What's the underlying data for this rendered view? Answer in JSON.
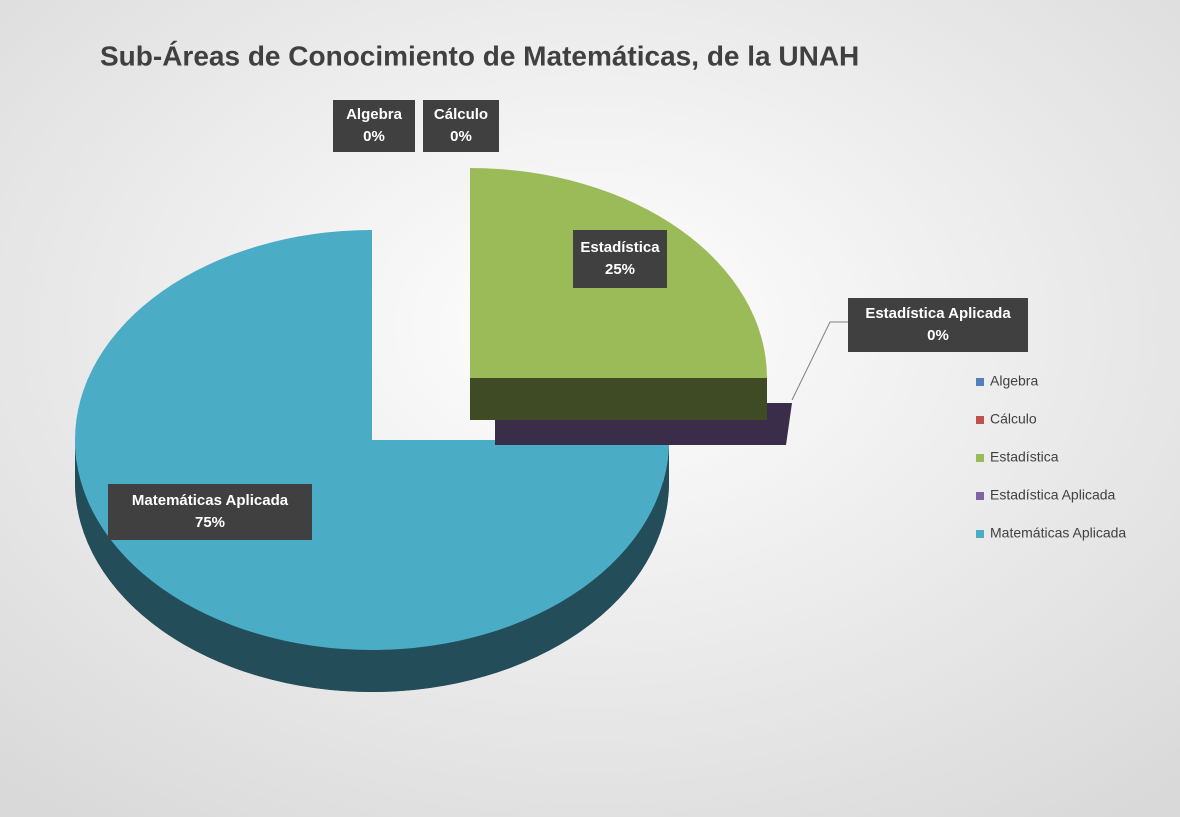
{
  "chart_data": {
    "type": "pie",
    "title": "Sub-Áreas de Conocimiento de Matemáticas, de la UNAH",
    "categories": [
      "Algebra",
      "Cálculo",
      "Estadística",
      "Estadística Aplicada",
      "Matemáticas Aplicada"
    ],
    "values": [
      0,
      0,
      25,
      0,
      75
    ],
    "value_labels": [
      "0%",
      "0%",
      "25%",
      "0%",
      "75%"
    ],
    "colors": [
      "#4f81bd",
      "#c0504d",
      "#9bbb59",
      "#8064a2",
      "#4bacc6"
    ],
    "legend": "right"
  }
}
